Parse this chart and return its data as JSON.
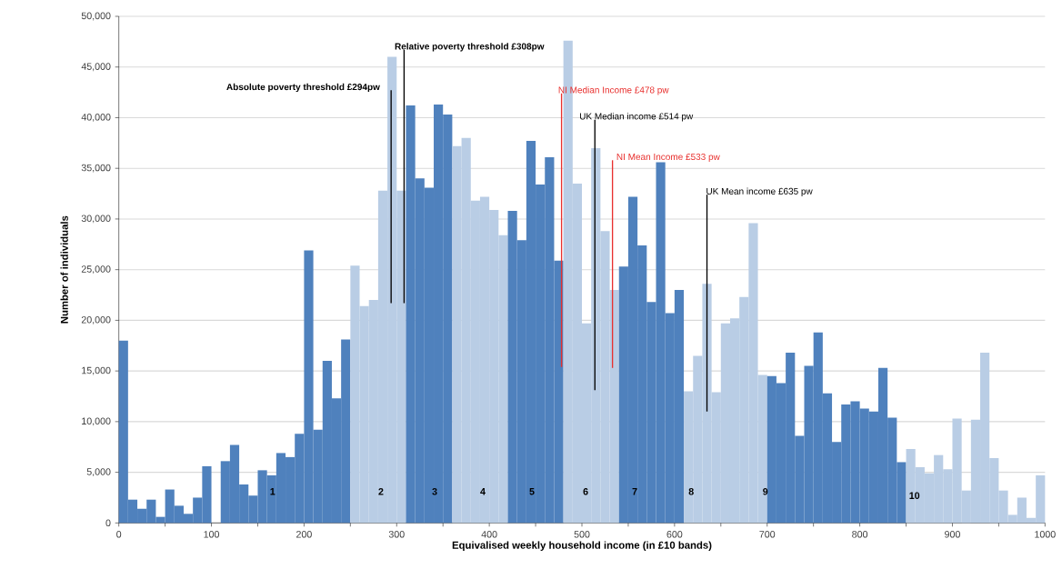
{
  "chart_data": {
    "type": "histogram",
    "xlabel": "Equivalised weekly household income (in £10 bands)",
    "ylabel": "Number of individuals",
    "bins": [
      0,
      10,
      20,
      30,
      40,
      50,
      60,
      70,
      80,
      90,
      100,
      110,
      120,
      130,
      140,
      150,
      160,
      170,
      180,
      190,
      200,
      210,
      220,
      230,
      240,
      250,
      260,
      270,
      280,
      290,
      300,
      310,
      320,
      330,
      340,
      350,
      360,
      370,
      380,
      390,
      400,
      410,
      420,
      430,
      440,
      450,
      460,
      470,
      480,
      490,
      500,
      510,
      520,
      530,
      540,
      550,
      560,
      570,
      580,
      590,
      600,
      610,
      620,
      630,
      640,
      650,
      660,
      670,
      680,
      690,
      700,
      710,
      720,
      730,
      740,
      750,
      760,
      770,
      780,
      790,
      800,
      810,
      820,
      830,
      840,
      850,
      860,
      870,
      880,
      890,
      900,
      910,
      920,
      930,
      940,
      950,
      960,
      970,
      980,
      990,
      1000
    ],
    "values": [
      18000,
      2300,
      1400,
      2300,
      600,
      3300,
      1700,
      900,
      2500,
      5600,
      0,
      6100,
      7700,
      3800,
      2700,
      5200,
      4700,
      6900,
      6500,
      8800,
      26900,
      9200,
      16000,
      12300,
      18100,
      25400,
      21400,
      22000,
      32800,
      46000,
      32800,
      41200,
      34000,
      33100,
      41300,
      40300,
      37200,
      38000,
      31800,
      32200,
      30900,
      28400,
      30800,
      27900,
      37700,
      33400,
      36100,
      25900,
      47600,
      33500,
      19700,
      37000,
      28800,
      23000,
      25300,
      32200,
      27400,
      21800,
      35600,
      20700,
      23000,
      13000,
      16500,
      23600,
      12900,
      19700,
      20200,
      22300,
      29600,
      14600,
      14500,
      13800,
      16800,
      8600,
      15500,
      18800,
      12800,
      8000,
      11700,
      12000,
      11300,
      11000,
      15300,
      10400,
      6000,
      7300,
      5500,
      4900,
      6700,
      5300,
      10300,
      3200,
      10200,
      16800,
      6400,
      3200,
      800,
      2500,
      500,
      4700
    ],
    "colors": [
      "#4f81bd",
      "#4f81bd",
      "#4f81bd",
      "#4f81bd",
      "#4f81bd",
      "#4f81bd",
      "#4f81bd",
      "#4f81bd",
      "#4f81bd",
      "#4f81bd",
      "#4f81bd",
      "#4f81bd",
      "#4f81bd",
      "#4f81bd",
      "#4f81bd",
      "#4f81bd",
      "#4f81bd",
      "#4f81bd",
      "#4f81bd",
      "#4f81bd",
      "#4f81bd",
      "#4f81bd",
      "#4f81bd",
      "#4f81bd",
      "#4f81bd",
      "#b9cde5",
      "#b9cde5",
      "#b9cde5",
      "#b9cde5",
      "#b9cde5",
      "#b9cde5",
      "#4f81bd",
      "#4f81bd",
      "#4f81bd",
      "#4f81bd",
      "#4f81bd",
      "#b9cde5",
      "#b9cde5",
      "#b9cde5",
      "#b9cde5",
      "#b9cde5",
      "#b9cde5",
      "#4f81bd",
      "#4f81bd",
      "#4f81bd",
      "#4f81bd",
      "#4f81bd",
      "#4f81bd",
      "#b9cde5",
      "#b9cde5",
      "#b9cde5",
      "#b9cde5",
      "#b9cde5",
      "#b9cde5",
      "#4f81bd",
      "#4f81bd",
      "#4f81bd",
      "#4f81bd",
      "#4f81bd",
      "#4f81bd",
      "#4f81bd",
      "#b9cde5",
      "#b9cde5",
      "#b9cde5",
      "#b9cde5",
      "#b9cde5",
      "#b9cde5",
      "#b9cde5",
      "#b9cde5",
      "#b9cde5",
      "#4f81bd",
      "#4f81bd",
      "#4f81bd",
      "#4f81bd",
      "#4f81bd",
      "#4f81bd",
      "#4f81bd",
      "#4f81bd",
      "#4f81bd",
      "#4f81bd",
      "#4f81bd",
      "#4f81bd",
      "#4f81bd",
      "#4f81bd",
      "#4f81bd",
      "#b9cde5",
      "#b9cde5",
      "#b9cde5",
      "#b9cde5",
      "#b9cde5",
      "#b9cde5",
      "#b9cde5",
      "#b9cde5",
      "#b9cde5",
      "#b9cde5",
      "#b9cde5",
      "#b9cde5",
      "#b9cde5",
      "#b9cde5",
      "#b9cde5"
    ],
    "xlim": [
      0,
      1000
    ],
    "ylim": [
      0,
      50000
    ],
    "xticks": [
      0,
      {
        "value": 50,
        "label": null
      },
      100,
      {
        "value": 150,
        "label": null
      },
      200,
      {
        "value": 250,
        "label": null
      },
      300,
      {
        "value": 350,
        "label": null
      },
      400,
      {
        "value": 450,
        "label": null
      },
      500,
      {
        "value": 550,
        "label": null
      },
      600,
      {
        "value": 650,
        "label": null
      },
      700,
      {
        "value": 750,
        "label": null
      },
      800,
      {
        "value": 850,
        "label": null
      },
      900,
      {
        "value": 950,
        "label": null
      },
      1000
    ],
    "yticks": [
      0,
      {
        "value": 5000,
        "label": "5,000"
      },
      {
        "value": 10000,
        "label": "10,000"
      },
      {
        "value": 15000,
        "label": "15,000"
      },
      {
        "value": 20000,
        "label": "20,000"
      },
      {
        "value": 25000,
        "label": "25,000"
      },
      {
        "value": 30000,
        "label": "30,000"
      },
      {
        "value": 35000,
        "label": "35,000"
      },
      {
        "value": 40000,
        "label": "40,000"
      },
      {
        "value": 45000,
        "label": "45,000"
      },
      {
        "value": 50000,
        "label": "50,000"
      }
    ],
    "grid": "y",
    "ref_lines": [
      {
        "axis": "x",
        "value": 294,
        "label": "Absolute poverty threshold £294pw",
        "color": "#000000"
      },
      {
        "axis": "x",
        "value": 308,
        "label": "Relative poverty threshold £308pw",
        "color": "#000000"
      },
      {
        "axis": "x",
        "value": 478,
        "label": "NI Median Income £478 pw",
        "color": "#e8302e"
      },
      {
        "axis": "x",
        "value": 514,
        "label": "UK Median income £514 pw",
        "color": "#000000"
      },
      {
        "axis": "x",
        "value": 533,
        "label": "NI Mean Income £533 pw",
        "color": "#e8302e"
      },
      {
        "axis": "x",
        "value": 635,
        "label": "UK Mean income £635 pw",
        "color": "#000000"
      }
    ],
    "annotations": [
      {
        "text": "1",
        "x": 166,
        "y": 3100
      },
      {
        "text": "2",
        "x": 283,
        "y": 3100
      },
      {
        "text": "3",
        "x": 341,
        "y": 3100
      },
      {
        "text": "4",
        "x": 393,
        "y": 3100
      },
      {
        "text": "5",
        "x": 446,
        "y": 3100
      },
      {
        "text": "6",
        "x": 504,
        "y": 3100
      },
      {
        "text": "7",
        "x": 557,
        "y": 3100
      },
      {
        "text": "8",
        "x": 618,
        "y": 3100
      },
      {
        "text": "9",
        "x": 698,
        "y": 3100
      },
      {
        "text": "10",
        "x": 859,
        "y": 2700
      }
    ]
  }
}
